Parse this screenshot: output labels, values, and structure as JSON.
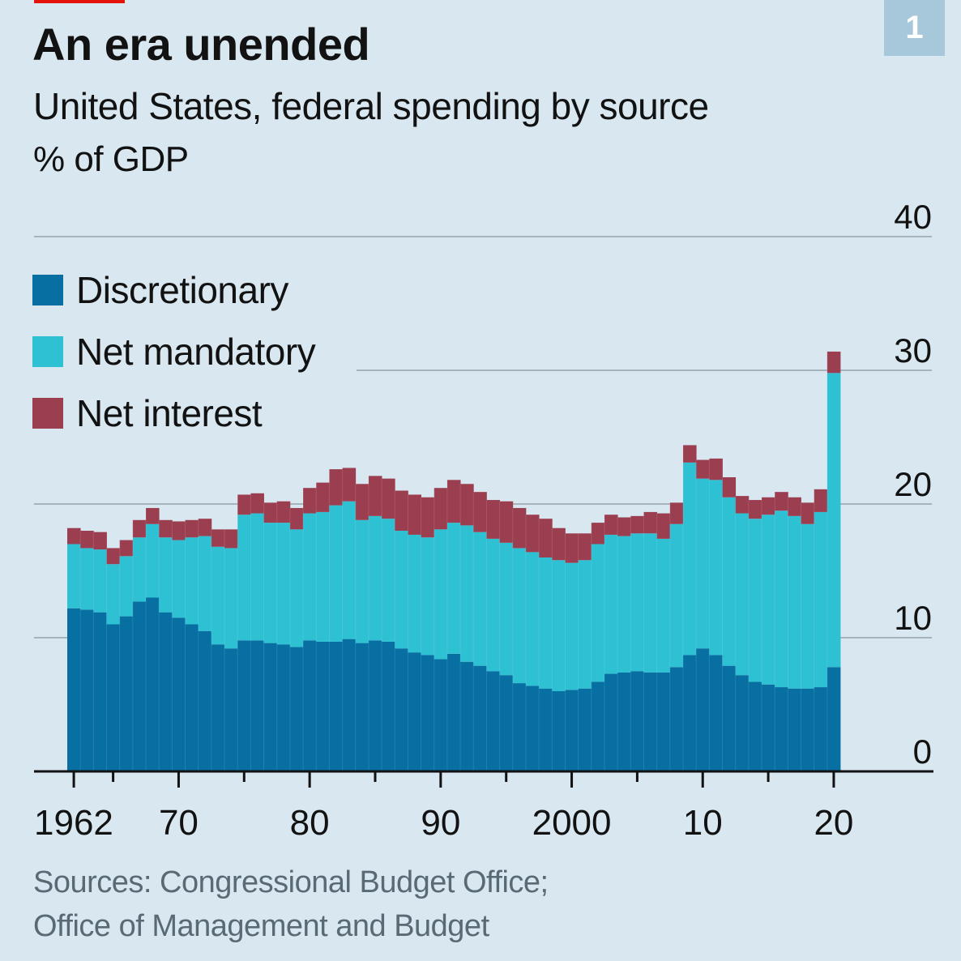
{
  "header": {
    "title": "An era unended",
    "subtitle": "United States, federal spending by source",
    "unit": "% of GDP",
    "badge": "1"
  },
  "colors": {
    "background": "#d8e7f0",
    "discretionary": "#076fa1",
    "net_mandatory": "#2ec0d3",
    "net_interest": "#9b3f50",
    "gridline": "#a8b4bc",
    "axis": "#121212",
    "badge": "#a6c8da",
    "brand_tag": "#e3120b"
  },
  "footer": {
    "source_line1": "Sources: Congressional Budget Office;",
    "source_line2": "Office of Management and Budget"
  },
  "chart_data": {
    "type": "bar",
    "stacked": true,
    "title": "An era unended",
    "subtitle": "United States, federal spending by source",
    "ylabel": "% of GDP",
    "xlabel": "",
    "ylim": [
      0,
      40
    ],
    "yticks": [
      0,
      10,
      20,
      30,
      40
    ],
    "ytick_labels": [
      "0",
      "10",
      "20",
      "30",
      "40"
    ],
    "y_axis_position": "right",
    "grid": true,
    "legend_position": "top-left",
    "xtick_labels": [
      {
        "year": 1962,
        "label": "1962"
      },
      {
        "year": 1970,
        "label": "70"
      },
      {
        "year": 1980,
        "label": "80"
      },
      {
        "year": 1990,
        "label": "90"
      },
      {
        "year": 2000,
        "label": "2000"
      },
      {
        "year": 2010,
        "label": "10"
      },
      {
        "year": 2020,
        "label": "20"
      }
    ],
    "minor_ticks": [
      1965,
      1975,
      1985,
      1995,
      2005,
      2015
    ],
    "categories": [
      1962,
      1963,
      1964,
      1965,
      1966,
      1967,
      1968,
      1969,
      1970,
      1971,
      1972,
      1973,
      1974,
      1975,
      1976,
      1977,
      1978,
      1979,
      1980,
      1981,
      1982,
      1983,
      1984,
      1985,
      1986,
      1987,
      1988,
      1989,
      1990,
      1991,
      1992,
      1993,
      1994,
      1995,
      1996,
      1997,
      1998,
      1999,
      2000,
      2001,
      2002,
      2003,
      2004,
      2005,
      2006,
      2007,
      2008,
      2009,
      2010,
      2011,
      2012,
      2013,
      2014,
      2015,
      2016,
      2017,
      2018,
      2019,
      2020
    ],
    "series": [
      {
        "name": "Discretionary",
        "values": [
          12.2,
          12.1,
          11.9,
          11.0,
          11.6,
          12.7,
          13.0,
          11.9,
          11.5,
          11.0,
          10.5,
          9.5,
          9.2,
          9.8,
          9.8,
          9.6,
          9.5,
          9.3,
          9.8,
          9.7,
          9.7,
          9.9,
          9.6,
          9.8,
          9.7,
          9.2,
          8.9,
          8.7,
          8.4,
          8.8,
          8.2,
          7.9,
          7.5,
          7.2,
          6.6,
          6.4,
          6.2,
          6.0,
          6.1,
          6.2,
          6.7,
          7.3,
          7.4,
          7.5,
          7.4,
          7.4,
          7.8,
          8.7,
          9.2,
          8.7,
          7.9,
          7.2,
          6.7,
          6.5,
          6.3,
          6.2,
          6.2,
          6.3,
          7.8
        ]
      },
      {
        "name": "Net mandatory",
        "values": [
          4.8,
          4.6,
          4.7,
          4.5,
          4.5,
          4.8,
          5.5,
          5.6,
          5.8,
          6.5,
          7.1,
          7.3,
          7.5,
          9.4,
          9.5,
          9.0,
          9.1,
          8.8,
          9.5,
          9.7,
          10.2,
          10.3,
          9.2,
          9.3,
          9.2,
          8.8,
          8.8,
          8.8,
          9.7,
          9.8,
          10.2,
          10.0,
          9.9,
          9.9,
          10.1,
          10.0,
          9.8,
          9.8,
          9.5,
          9.6,
          10.3,
          10.4,
          10.2,
          10.3,
          10.4,
          10.0,
          10.7,
          14.4,
          12.7,
          13.1,
          12.6,
          12.1,
          12.2,
          12.7,
          13.2,
          12.9,
          12.3,
          13.1,
          22.0
        ]
      },
      {
        "name": "Net interest",
        "values": [
          1.2,
          1.3,
          1.3,
          1.2,
          1.2,
          1.3,
          1.2,
          1.3,
          1.4,
          1.3,
          1.3,
          1.3,
          1.4,
          1.5,
          1.5,
          1.5,
          1.6,
          1.6,
          1.9,
          2.2,
          2.7,
          2.5,
          2.7,
          3.0,
          3.0,
          3.0,
          3.0,
          3.0,
          3.1,
          3.2,
          3.1,
          3.0,
          2.9,
          3.1,
          3.0,
          2.8,
          2.9,
          2.4,
          2.2,
          2.0,
          1.6,
          1.5,
          1.4,
          1.3,
          1.6,
          1.9,
          1.6,
          1.3,
          1.4,
          1.6,
          1.5,
          1.3,
          1.4,
          1.3,
          1.4,
          1.4,
          1.6,
          1.7,
          1.6
        ]
      }
    ]
  }
}
